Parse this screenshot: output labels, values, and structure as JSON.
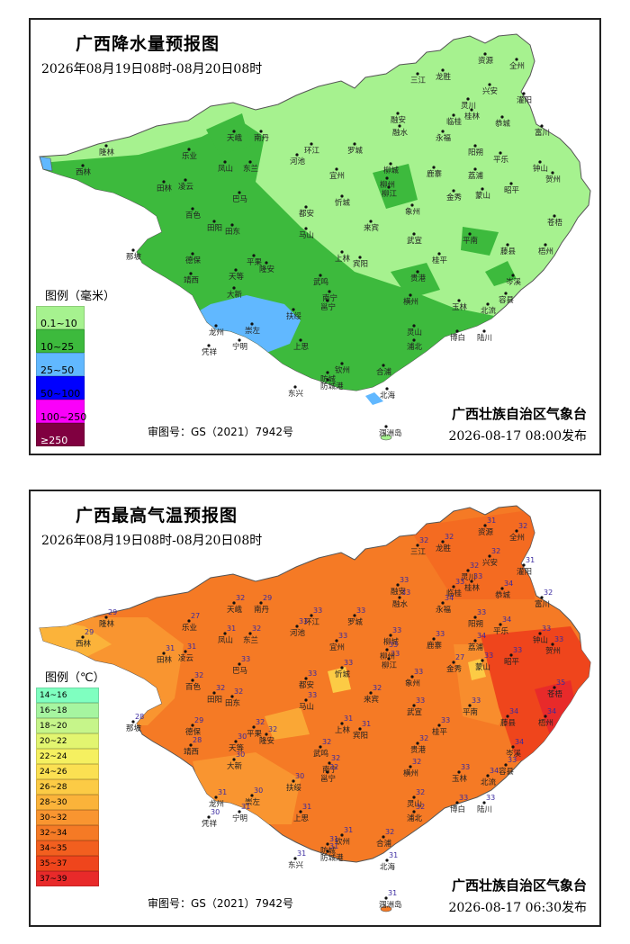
{
  "rain_map": {
    "title": "广西降水量预报图",
    "period": "2026年08月19日08时-08月20日08时",
    "issuer": "广西壮族自治区气象台",
    "issue_time": "2026-08-17  08:00发布",
    "review_no": "审图号：GS（2021）7942号",
    "legend_title": "图例（毫米）",
    "legend": [
      {
        "label": "0.1~10",
        "color": "#a6f28f"
      },
      {
        "label": "10~25",
        "color": "#3dba3d"
      },
      {
        "label": "25~50",
        "color": "#61b8ff"
      },
      {
        "label": "50~100",
        "color": "#0000ff"
      },
      {
        "label": "100~250",
        "color": "#fa00fa"
      },
      {
        "label": "≥250",
        "color": "#800040"
      }
    ]
  },
  "temp_map": {
    "title": "广西最高气温预报图",
    "period": "2026年08月19日08时-08月20日08时",
    "issuer": "广西壮族自治区气象台",
    "issue_time": "2026-08-17  06:30发布",
    "review_no": "审图号：GS（2021）7942号",
    "legend_title": "图例（℃）",
    "legend": [
      {
        "label": "14~16",
        "color": "#7fffc0"
      },
      {
        "label": "16~18",
        "color": "#a6f5a0"
      },
      {
        "label": "18~20",
        "color": "#c6f58a"
      },
      {
        "label": "20~22",
        "color": "#e2f570"
      },
      {
        "label": "22~24",
        "color": "#f5f060"
      },
      {
        "label": "24~26",
        "color": "#fbe052"
      },
      {
        "label": "26~28",
        "color": "#fccb45"
      },
      {
        "label": "28~30",
        "color": "#fbb33a"
      },
      {
        "label": "30~32",
        "color": "#f99530"
      },
      {
        "label": "32~34",
        "color": "#f57a25"
      },
      {
        "label": "34~35",
        "color": "#f25f1f"
      },
      {
        "label": "35~37",
        "color": "#ef451c"
      },
      {
        "label": "37~39",
        "color": "#e82a2a"
      }
    ]
  },
  "cities": [
    {
      "name": "资源",
      "temp": "31"
    },
    {
      "name": "全州",
      "temp": "32"
    },
    {
      "name": "三江",
      "temp": "32"
    },
    {
      "name": "龙胜",
      "temp": "32"
    },
    {
      "name": "兴安",
      "temp": "32"
    },
    {
      "name": "灵川",
      "temp": "32"
    },
    {
      "name": "灌阳",
      "temp": "31"
    },
    {
      "name": "融安",
      "temp": "33"
    },
    {
      "name": "桂林",
      "temp": "33"
    },
    {
      "name": "临桂",
      "temp": "33"
    },
    {
      "name": "融水",
      "temp": "33"
    },
    {
      "name": "永福",
      "temp": "34"
    },
    {
      "name": "恭城",
      "temp": "34"
    },
    {
      "name": "富川",
      "temp": "32"
    },
    {
      "name": "天峨",
      "temp": "32"
    },
    {
      "name": "南丹",
      "temp": "29"
    },
    {
      "name": "罗城",
      "temp": "33"
    },
    {
      "name": "环江",
      "temp": "33"
    },
    {
      "name": "阳朔",
      "temp": "33"
    },
    {
      "name": "平乐",
      "temp": "34"
    },
    {
      "name": "钟山",
      "temp": "33"
    },
    {
      "name": "贺州",
      "temp": "33"
    },
    {
      "name": "隆林",
      "temp": "29"
    },
    {
      "name": "乐业",
      "temp": "27"
    },
    {
      "name": "凤山",
      "temp": "31"
    },
    {
      "name": "东兰",
      "temp": "32"
    },
    {
      "name": "河池",
      "temp": "33"
    },
    {
      "name": "宜州",
      "temp": "33"
    },
    {
      "name": "柳城",
      "temp": "33"
    },
    {
      "name": "鹿寨",
      "temp": "33"
    },
    {
      "name": "荔浦",
      "temp": "34"
    },
    {
      "name": "昭平",
      "temp": "33"
    },
    {
      "name": "西林",
      "temp": "29"
    },
    {
      "name": "田林",
      "temp": "31"
    },
    {
      "name": "凌云",
      "temp": "31"
    },
    {
      "name": "巴马",
      "temp": "33"
    },
    {
      "name": "柳江",
      "temp": "33"
    },
    {
      "name": "金秀",
      "temp": "27"
    },
    {
      "name": "蒙山",
      "temp": "33"
    },
    {
      "name": "柳州",
      "temp": "33"
    },
    {
      "name": "百色",
      "temp": "32"
    },
    {
      "name": "田阳",
      "temp": "32"
    },
    {
      "name": "田东",
      "temp": "32"
    },
    {
      "name": "都安",
      "temp": "33"
    },
    {
      "name": "忻城",
      "temp": "33"
    },
    {
      "name": "象州",
      "temp": "33"
    },
    {
      "name": "苍梧",
      "temp": "35"
    },
    {
      "name": "马山",
      "temp": "33"
    },
    {
      "name": "来宾",
      "temp": "32"
    },
    {
      "name": "武宣",
      "temp": "33"
    },
    {
      "name": "平南",
      "temp": "33"
    },
    {
      "name": "藤县",
      "temp": "34"
    },
    {
      "name": "梧州",
      "temp": "34"
    },
    {
      "name": "那坡",
      "temp": "28"
    },
    {
      "name": "德保",
      "temp": "29"
    },
    {
      "name": "平果",
      "temp": "32"
    },
    {
      "name": "隆安",
      "temp": "32"
    },
    {
      "name": "上林",
      "temp": "31"
    },
    {
      "name": "宾阳",
      "temp": "31"
    },
    {
      "name": "桂平",
      "temp": "33"
    },
    {
      "name": "岑溪",
      "temp": "34"
    },
    {
      "name": "靖西",
      "temp": "28"
    },
    {
      "name": "天等",
      "temp": "30"
    },
    {
      "name": "武鸣",
      "temp": "32"
    },
    {
      "name": "贵港",
      "temp": "32"
    },
    {
      "name": "大新",
      "temp": "30"
    },
    {
      "name": "南宁",
      "temp": "32"
    },
    {
      "name": "横州",
      "temp": "32"
    },
    {
      "name": "玉林",
      "temp": "33"
    },
    {
      "name": "北流",
      "temp": "34"
    },
    {
      "name": "容县",
      "temp": "33"
    },
    {
      "name": "邕宁",
      "temp": "32"
    },
    {
      "name": "扶绥",
      "temp": "30"
    },
    {
      "name": "龙州",
      "temp": "31"
    },
    {
      "name": "崇左",
      "temp": "30"
    },
    {
      "name": "灵山",
      "temp": "32"
    },
    {
      "name": "博白",
      "temp": "33"
    },
    {
      "name": "陆川",
      "temp": "33"
    },
    {
      "name": "凭祥",
      "temp": "30"
    },
    {
      "name": "宁明",
      "temp": "31"
    },
    {
      "name": "上思",
      "temp": "31"
    },
    {
      "name": "浦北",
      "temp": "32"
    },
    {
      "name": "钦州",
      "temp": "31"
    },
    {
      "name": "合浦",
      "temp": "32"
    },
    {
      "name": "防城",
      "temp": "31"
    },
    {
      "name": "防城港",
      "temp": "31"
    },
    {
      "name": "东兴",
      "temp": "31"
    },
    {
      "name": "北海",
      "temp": "31"
    },
    {
      "name": "涠洲岛",
      "temp": "31"
    }
  ]
}
